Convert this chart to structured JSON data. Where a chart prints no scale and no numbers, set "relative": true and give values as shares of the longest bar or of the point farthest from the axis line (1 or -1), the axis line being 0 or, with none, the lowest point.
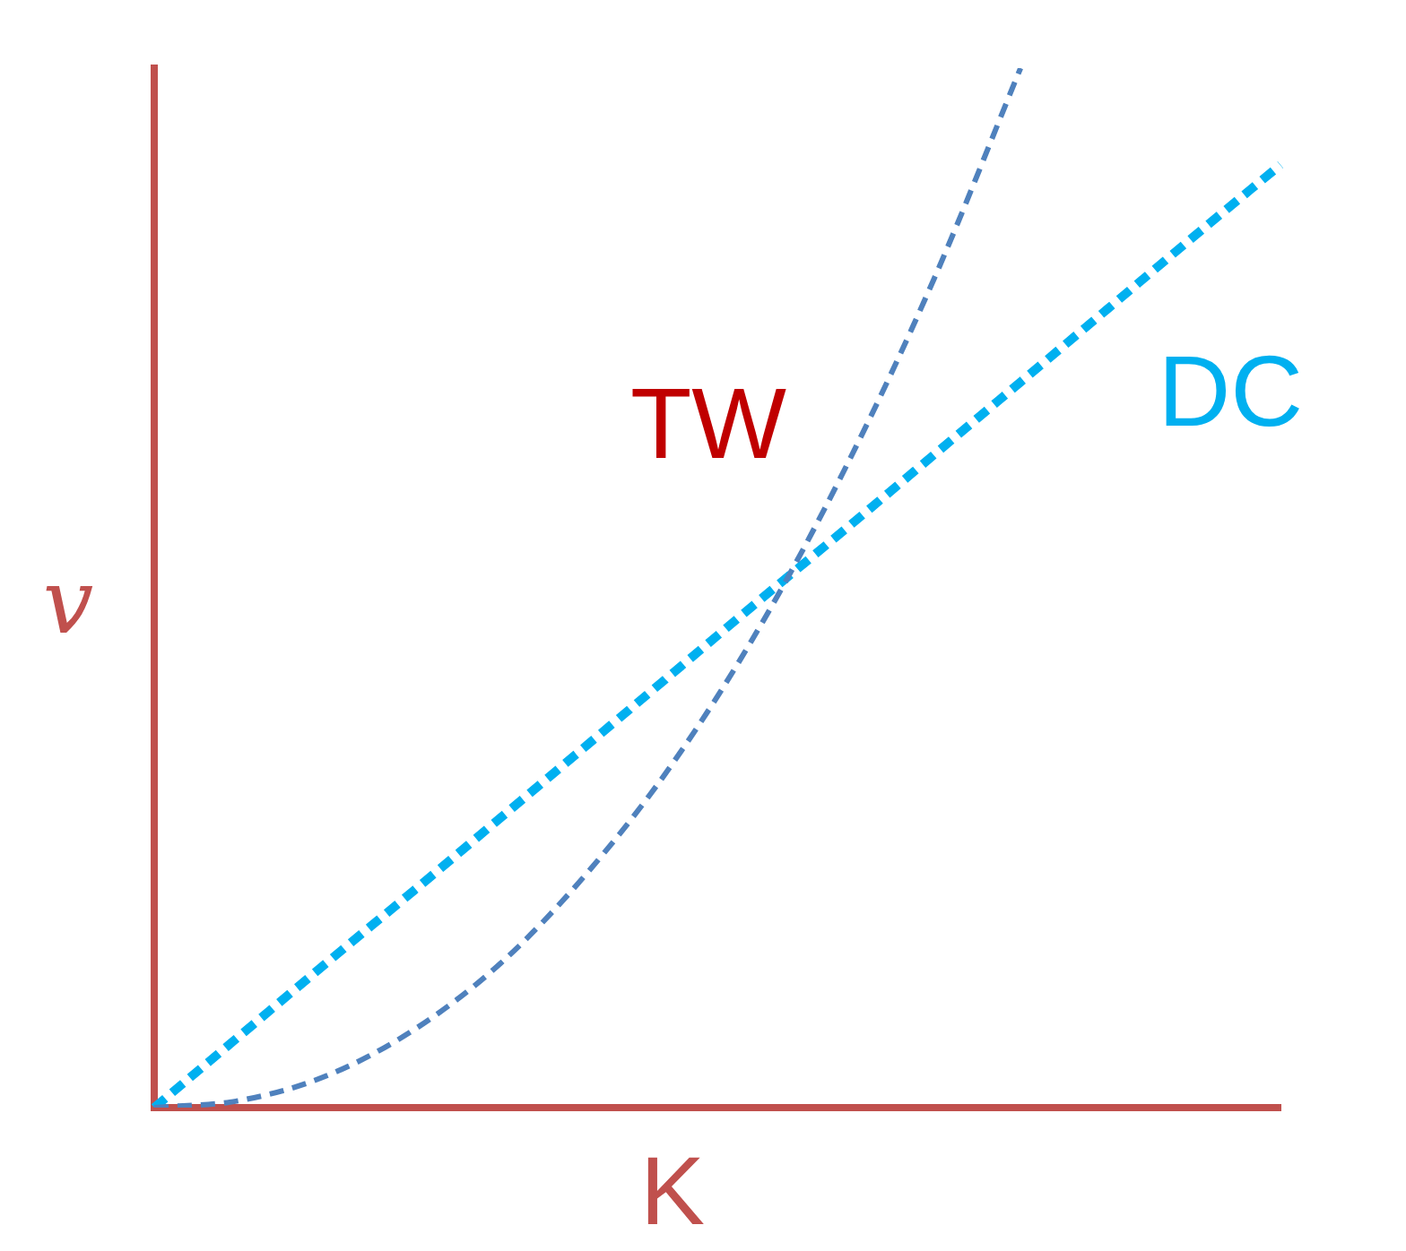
{
  "chart_data": {
    "type": "line",
    "relative": true,
    "xlabel": "K",
    "ylabel": "v",
    "marker": "none",
    "line_style": "dashed",
    "categories": [
      null,
      null,
      null,
      null,
      null,
      null,
      null,
      null,
      null,
      null,
      null,
      null,
      null,
      null
    ],
    "series": [
      {
        "color": "#4f81bd",
        "values": [
          0,
          0.007,
          0.031,
          0.075,
          0.139,
          0.226,
          0.333,
          0.464,
          0.619,
          0.797,
          1,
          null,
          null,
          null
        ]
      },
      {
        "name": "DC",
        "color": "#00b0f0",
        "values": [
          0,
          0.07,
          0.14,
          0.209,
          0.279,
          0.349,
          0.419,
          0.489,
          0.558,
          0.628,
          0.698,
          0.768,
          0.838,
          0.907
        ]
      }
    ],
    "annotations": [
      "TW"
    ]
  }
}
